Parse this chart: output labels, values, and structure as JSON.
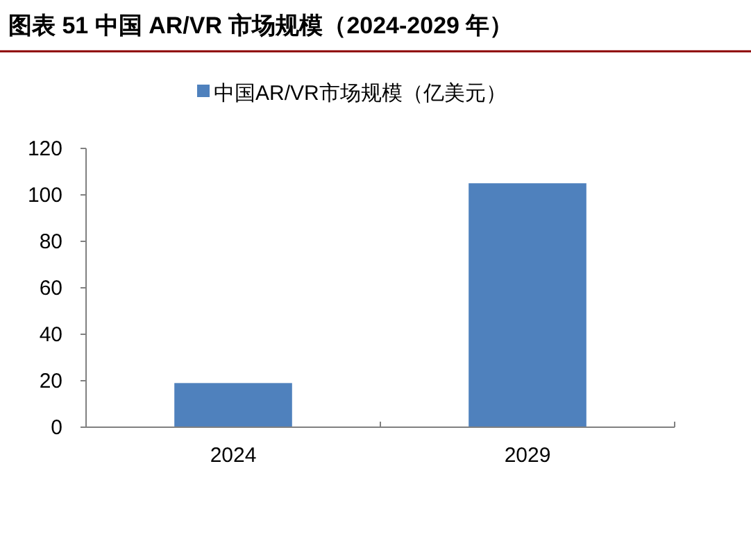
{
  "chart_data": {
    "type": "bar",
    "title": "图表 51  中国 AR/VR 市场规模（2024-2029 年）",
    "categories": [
      "2024",
      "2029"
    ],
    "series": [
      {
        "name": "中国AR/VR市场规模（亿美元）",
        "color": "#4f81bd",
        "values": [
          19,
          105
        ]
      }
    ],
    "ylim": [
      0,
      120
    ],
    "yticks": [
      0,
      20,
      40,
      60,
      80,
      100,
      120
    ],
    "grid": false,
    "legend": "top"
  }
}
